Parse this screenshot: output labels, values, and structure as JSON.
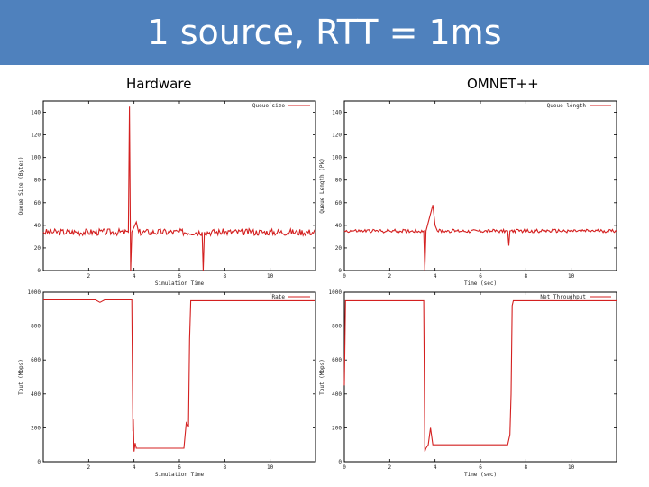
{
  "slide": {
    "title": "1 source, RTT = 1ms",
    "left_heading": "Hardware",
    "right_heading": "OMNET++"
  },
  "colors": {
    "title_bg": "#4f81bd",
    "series": "#d42020"
  },
  "chart_data": [
    {
      "id": "hw-queue",
      "type": "line",
      "legend": "Queue size",
      "xlabel": "Simulation Time",
      "ylabel": "Queue Size (Bytes)",
      "xlim": [
        0,
        12
      ],
      "ylim": [
        0,
        150
      ],
      "xticks": [
        2,
        4,
        6,
        8,
        10
      ],
      "yticks": [
        0,
        20,
        40,
        60,
        80,
        100,
        120,
        140
      ],
      "ytick_labels": [
        "0",
        "20",
        "40",
        "60",
        "80",
        "100",
        "120",
        "140"
      ],
      "series": [
        {
          "name": "Queue size",
          "baseline": 34,
          "noise": 3,
          "points": [
            [
              0,
              34
            ],
            [
              3.75,
              34
            ],
            [
              3.8,
              145
            ],
            [
              3.85,
              0
            ],
            [
              3.9,
              34
            ],
            [
              4.1,
              43
            ],
            [
              4.2,
              34
            ],
            [
              7,
              34
            ],
            [
              7.05,
              0
            ],
            [
              7.1,
              34
            ],
            [
              12,
              34
            ]
          ]
        }
      ]
    },
    {
      "id": "omnet-queue",
      "type": "line",
      "legend": "Queue length",
      "xlabel": "Time (sec)",
      "ylabel": "Queue Length (Pk)",
      "xlim": [
        0,
        12
      ],
      "ylim": [
        0,
        150
      ],
      "xticks": [
        0,
        2,
        4,
        6,
        8,
        10
      ],
      "yticks": [
        0,
        20,
        40,
        60,
        80,
        100,
        120,
        140
      ],
      "ytick_labels": [
        "0",
        "20",
        "40",
        "60",
        "80",
        "100",
        "120",
        "140"
      ],
      "series": [
        {
          "name": "Queue length",
          "baseline": 35,
          "noise": 1.5,
          "points": [
            [
              0,
              35
            ],
            [
              3.5,
              35
            ],
            [
              3.55,
              0
            ],
            [
              3.6,
              35
            ],
            [
              3.9,
              58
            ],
            [
              4.0,
              40
            ],
            [
              4.1,
              35
            ],
            [
              7.2,
              35
            ],
            [
              7.25,
              22
            ],
            [
              7.3,
              35
            ],
            [
              12,
              35
            ]
          ]
        }
      ]
    },
    {
      "id": "hw-throughput",
      "type": "line",
      "legend": "Rate",
      "xlabel": "Simulation Time",
      "ylabel": "Tput (Mbps)",
      "xlim": [
        0,
        12
      ],
      "ylim": [
        0,
        1000
      ],
      "xticks": [
        2,
        4,
        6,
        8,
        10
      ],
      "yticks": [
        0,
        200,
        400,
        600,
        800,
        1000
      ],
      "ytick_labels": [
        "0",
        "200",
        "400",
        "600",
        "800",
        "1000"
      ],
      "series": [
        {
          "name": "Rate",
          "baseline": null,
          "noise": 0,
          "points": [
            [
              0,
              955
            ],
            [
              2.3,
              955
            ],
            [
              2.5,
              940
            ],
            [
              2.7,
              955
            ],
            [
              3.9,
              955
            ],
            [
              3.95,
              180
            ],
            [
              3.97,
              250
            ],
            [
              4.0,
              60
            ],
            [
              4.05,
              110
            ],
            [
              4.1,
              80
            ],
            [
              6.2,
              80
            ],
            [
              6.3,
              230
            ],
            [
              6.4,
              210
            ],
            [
              6.45,
              720
            ],
            [
              6.5,
              950
            ],
            [
              12,
              950
            ]
          ]
        }
      ]
    },
    {
      "id": "omnet-throughput",
      "type": "line",
      "legend": "Net Throughput",
      "xlabel": "Time (sec)",
      "ylabel": "Tput (Mbps)",
      "xlim": [
        0,
        12
      ],
      "ylim": [
        0,
        1000
      ],
      "xticks": [
        0,
        2,
        4,
        6,
        8,
        10
      ],
      "yticks": [
        0,
        200,
        400,
        600,
        800,
        1000
      ],
      "ytick_labels": [
        "0",
        "200",
        "400",
        "600",
        "800",
        "1000"
      ],
      "series": [
        {
          "name": "Net Throughput",
          "baseline": null,
          "noise": 0,
          "points": [
            [
              0,
              450
            ],
            [
              0.05,
              950
            ],
            [
              3.5,
              950
            ],
            [
              3.55,
              60
            ],
            [
              3.6,
              80
            ],
            [
              3.7,
              100
            ],
            [
              3.8,
              200
            ],
            [
              3.9,
              100
            ],
            [
              7.2,
              100
            ],
            [
              7.3,
              160
            ],
            [
              7.35,
              400
            ],
            [
              7.4,
              920
            ],
            [
              7.45,
              950
            ],
            [
              12,
              950
            ]
          ]
        }
      ]
    }
  ]
}
